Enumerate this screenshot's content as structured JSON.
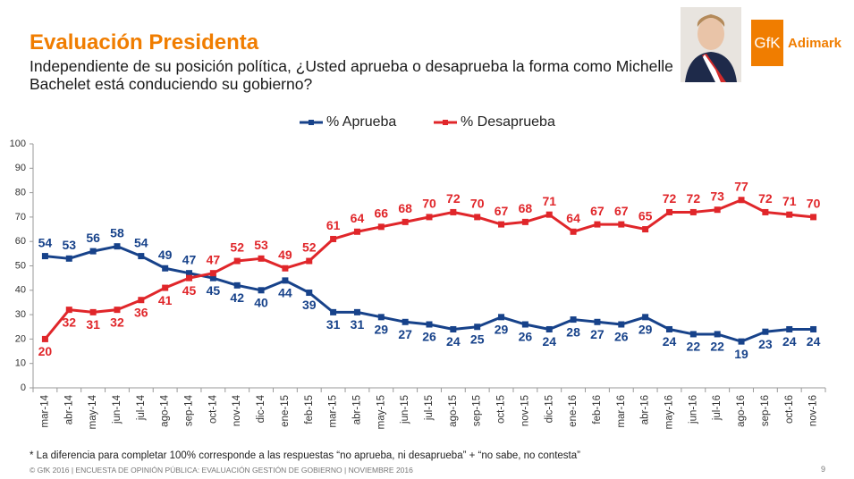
{
  "chart_data": {
    "type": "line",
    "title": "Evaluación Presidenta",
    "subtitle": "Independiente de su posición política, ¿Usted aprueba o desaprueba la forma como Michelle Bachelet está conduciendo su gobierno?",
    "categories": [
      "mar-14",
      "abr-14",
      "may-14",
      "jun-14",
      "jul-14",
      "ago-14",
      "sep-14",
      "oct-14",
      "nov-14",
      "dic-14",
      "ene-15",
      "feb-15",
      "mar-15",
      "abr-15",
      "may-15",
      "jun-15",
      "jul-15",
      "ago-15",
      "sep-15",
      "oct-15",
      "nov-15",
      "dic-15",
      "ene-16",
      "feb-16",
      "mar-16",
      "abr-16",
      "may-16",
      "jun-16",
      "jul-16",
      "ago-16",
      "sep-16",
      "oct-16",
      "nov-16"
    ],
    "series": [
      {
        "name": "% Aprueba",
        "color": "#17428a",
        "values": [
          54,
          53,
          56,
          58,
          54,
          49,
          47,
          45,
          42,
          40,
          44,
          39,
          31,
          31,
          29,
          27,
          26,
          24,
          25,
          29,
          26,
          24,
          28,
          27,
          26,
          29,
          24,
          22,
          22,
          19,
          23,
          24,
          24
        ]
      },
      {
        "name": "% Desaprueba",
        "color": "#e0262a",
        "values": [
          20,
          32,
          31,
          32,
          36,
          41,
          45,
          47,
          52,
          53,
          49,
          52,
          61,
          64,
          66,
          68,
          70,
          72,
          70,
          67,
          68,
          71,
          64,
          67,
          67,
          65,
          72,
          72,
          73,
          77,
          72,
          71,
          70
        ]
      }
    ],
    "ylim": [
      0,
      100
    ],
    "yticks": [
      0,
      10,
      20,
      30,
      40,
      50,
      60,
      70,
      80,
      90,
      100
    ],
    "grid": false,
    "legend": "top"
  },
  "footnote": "* La diferencia para completar 100% corresponde a las respuestas “no aprueba, ni desaprueba” + “no sabe, no contesta”",
  "footer": "© GfK 2016 | ENCUESTA DE OPINIÓN PÚBLICA: EVALUACIÓN GESTIÓN DE GOBIERNO | NOVIEMBRE 2016",
  "page_number": "9",
  "logo": {
    "brand": "GfK",
    "partner": "Adimark"
  }
}
